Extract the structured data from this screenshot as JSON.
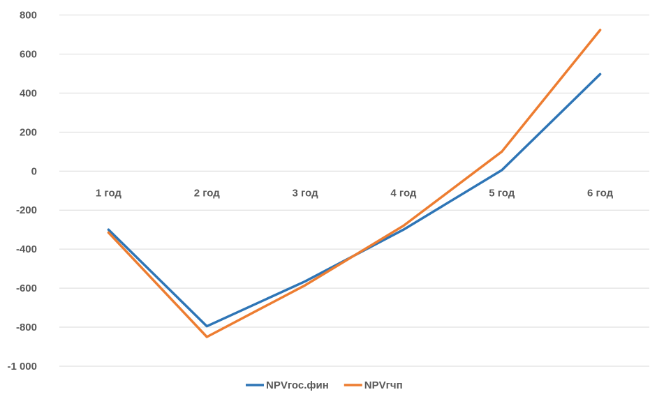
{
  "chart_data": {
    "type": "line",
    "title": "",
    "xlabel": "",
    "ylabel": "",
    "categories": [
      "1 год",
      "2 год",
      "3 год",
      "4 год",
      "5 год",
      "6 год"
    ],
    "ylim": [
      -1000,
      800
    ],
    "yticks": [
      800,
      600,
      400,
      200,
      0,
      -200,
      -400,
      -600,
      -800,
      -1000
    ],
    "ytick_labels": [
      "800",
      "600",
      "400",
      "200",
      "0",
      "-200",
      "-400",
      "-600",
      "-800",
      "-1 000"
    ],
    "grid": "horizontal",
    "legend_position": "bottom",
    "series": [
      {
        "name": "NPVгос.фин",
        "color": "#2E75B6",
        "values": [
          -300,
          -795,
          -565,
          -300,
          5,
          497
        ]
      },
      {
        "name": "NPVгчп",
        "color": "#ED7D31",
        "values": [
          -315,
          -850,
          -585,
          -280,
          100,
          723
        ]
      }
    ]
  }
}
